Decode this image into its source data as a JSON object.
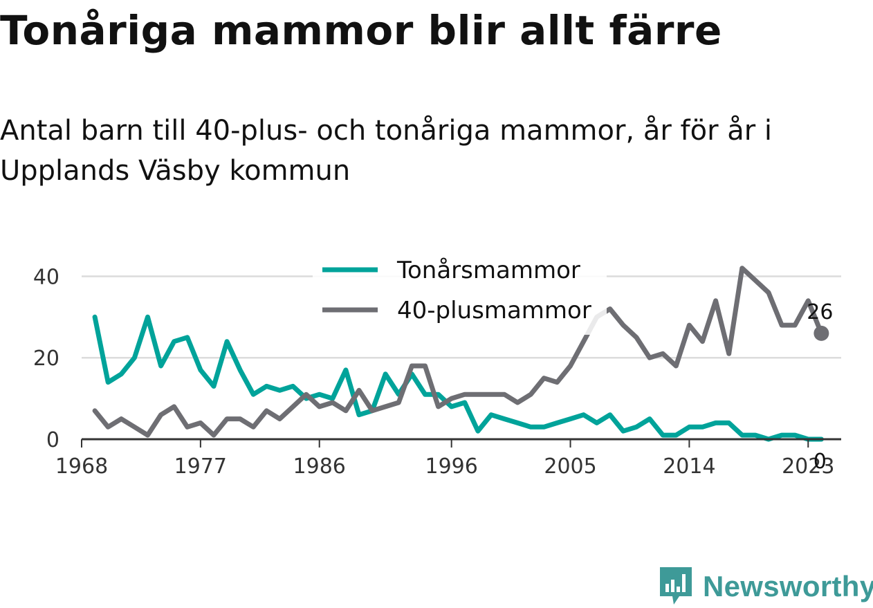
{
  "title": "Tonåriga mammor blir allt färre",
  "subtitle": "Antal barn till 40-plus- och tonåriga mammor, år för år i Upplands Väsby kommun",
  "brand": {
    "name": "Newsworthy",
    "color": "#3e9a98",
    "icon": "newsworthy-logo-icon"
  },
  "chart_data": {
    "type": "line",
    "x": [
      1969,
      1970,
      1971,
      1972,
      1973,
      1974,
      1975,
      1976,
      1977,
      1978,
      1979,
      1980,
      1981,
      1982,
      1983,
      1984,
      1985,
      1986,
      1987,
      1988,
      1989,
      1990,
      1991,
      1992,
      1993,
      1994,
      1995,
      1996,
      1997,
      1998,
      1999,
      2000,
      2001,
      2002,
      2003,
      2004,
      2005,
      2006,
      2007,
      2008,
      2009,
      2010,
      2011,
      2012,
      2013,
      2014,
      2015,
      2016,
      2017,
      2018,
      2019,
      2020,
      2021,
      2022,
      2023,
      2024
    ],
    "series": [
      {
        "name": "Tonårsmammor",
        "color": "#00a39a",
        "values": [
          30,
          14,
          16,
          20,
          30,
          18,
          24,
          25,
          17,
          13,
          24,
          17,
          11,
          13,
          12,
          13,
          10,
          11,
          10,
          17,
          6,
          7,
          16,
          11,
          16,
          11,
          11,
          8,
          9,
          2,
          6,
          5,
          4,
          3,
          3,
          4,
          5,
          6,
          4,
          6,
          2,
          3,
          5,
          1,
          1,
          3,
          3,
          4,
          4,
          1,
          1,
          0,
          1,
          1,
          0,
          0
        ]
      },
      {
        "name": "40-plusmammor",
        "color": "#6e6e73",
        "values": [
          7,
          3,
          5,
          3,
          1,
          6,
          8,
          3,
          4,
          1,
          5,
          5,
          3,
          7,
          5,
          8,
          11,
          8,
          9,
          7,
          12,
          7,
          8,
          9,
          18,
          18,
          8,
          10,
          11,
          11,
          11,
          11,
          9,
          11,
          15,
          14,
          18,
          24,
          30,
          32,
          28,
          25,
          20,
          21,
          18,
          28,
          24,
          34,
          21,
          42,
          39,
          36,
          28,
          28,
          34,
          26
        ]
      }
    ],
    "xticks": [
      1968,
      1977,
      1986,
      1996,
      2005,
      2014,
      2023
    ],
    "yticks": [
      0,
      20,
      40
    ],
    "xlim": [
      1968,
      2025.5
    ],
    "ylim": [
      0,
      45
    ],
    "end_labels": [
      "26",
      "0"
    ],
    "legend_position": "top",
    "grid": "horizontal"
  }
}
